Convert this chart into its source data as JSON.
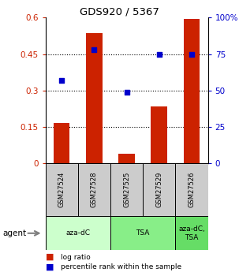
{
  "title": "GDS920 / 5367",
  "samples": [
    "GSM27524",
    "GSM27528",
    "GSM27525",
    "GSM27529",
    "GSM27526"
  ],
  "log_ratios": [
    0.165,
    0.535,
    0.04,
    0.235,
    0.595
  ],
  "percentile_ranks": [
    57,
    78,
    49,
    75,
    75
  ],
  "bar_color": "#cc2200",
  "dot_color": "#0000cc",
  "ylim_left": [
    0,
    0.6
  ],
  "ylim_right": [
    0,
    100
  ],
  "yticks_left": [
    0,
    0.15,
    0.3,
    0.45,
    0.6
  ],
  "yticks_right": [
    0,
    25,
    50,
    75,
    100
  ],
  "ytick_labels_left": [
    "0",
    "0.15",
    "0.3",
    "0.45",
    "0.6"
  ],
  "ytick_labels_right": [
    "0",
    "25",
    "50",
    "75",
    "100%"
  ],
  "agent_groups": [
    {
      "label": "aza-dC",
      "span": [
        0,
        1
      ],
      "color": "#ccffcc"
    },
    {
      "label": "TSA",
      "span": [
        2,
        3
      ],
      "color": "#88ee88"
    },
    {
      "label": "aza-dC,\nTSA",
      "span": [
        4,
        4
      ],
      "color": "#66dd66"
    }
  ],
  "tick_label_color_left": "#cc2200",
  "tick_label_color_right": "#0000cc",
  "label_bg_color": "#cccccc",
  "bar_width": 0.5
}
